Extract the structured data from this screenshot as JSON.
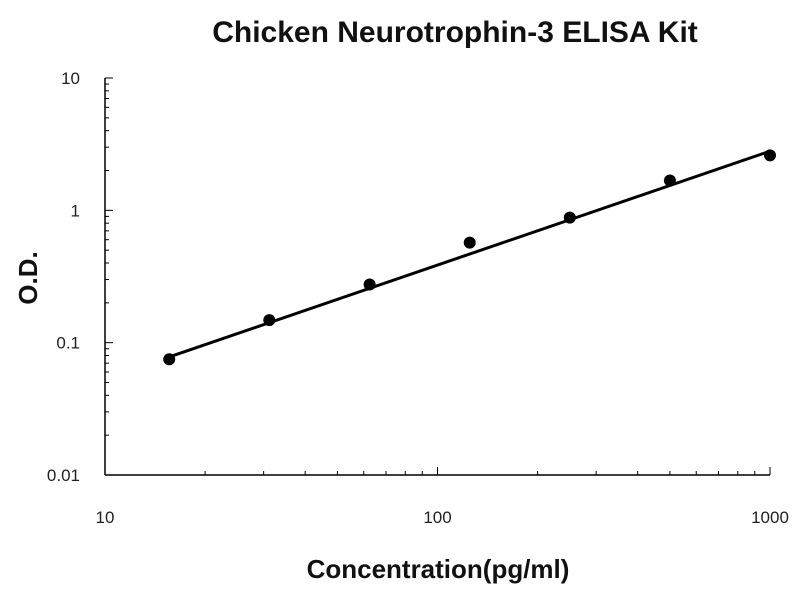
{
  "chart_data": {
    "type": "scatter",
    "title": "Chicken Neurotrophin-3 ELISA Kit",
    "xlabel": "Concentration(pg/ml)",
    "ylabel": "O.D.",
    "x_scale": "log",
    "y_scale": "log",
    "xlim": [
      10,
      1000
    ],
    "ylim": [
      0.01,
      10
    ],
    "x_ticks": [
      10,
      100,
      1000
    ],
    "x_tick_labels": [
      "10",
      "100",
      "1000"
    ],
    "y_ticks": [
      0.01,
      0.1,
      1,
      10
    ],
    "y_tick_labels": [
      "0.01",
      "0.1",
      "1",
      "10"
    ],
    "grid": false,
    "series": [
      {
        "x": [
          15.6,
          31.2,
          62.5,
          125,
          250,
          500,
          1000
        ],
        "y": [
          0.075,
          0.148,
          0.275,
          0.57,
          0.88,
          1.68,
          2.6
        ]
      }
    ],
    "fit_line": {
      "x": [
        15.6,
        1000
      ],
      "y": [
        0.078,
        2.8
      ]
    }
  }
}
